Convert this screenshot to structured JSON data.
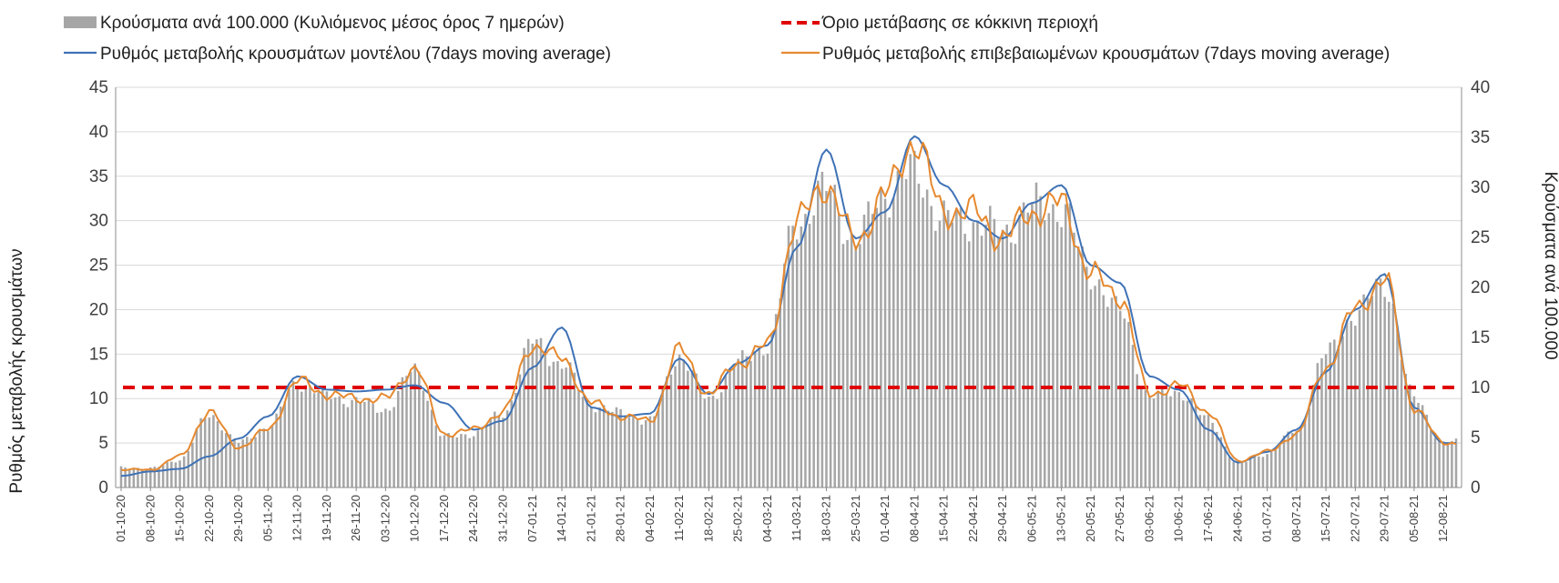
{
  "chart_data": {
    "type": "bar+line",
    "legend": [
      {
        "key": "bars",
        "label": "Κρούσματα ανά 100.000 (Κυλιόμενος μέσος όρος 7 ημερών)",
        "color": "#a6a6a6"
      },
      {
        "key": "threshold",
        "label": "Όριο μετάβασης σε κόκκινη περιοχή",
        "color": "#e00000"
      },
      {
        "key": "model",
        "label": "Ρυθμός μεταβολής κρουσμάτων μοντέλου (7days moving average)",
        "color": "#3f72b6"
      },
      {
        "key": "confirmed",
        "label": "Ρυθμός μεταβολής επιβεβαιωμένων κρουσμάτων (7days moving average)",
        "color": "#e6892f"
      }
    ],
    "left_axis": {
      "label": "Ρυθμός μεταβολής κρουσμάτων",
      "min": 0,
      "max": 45,
      "ticks": [
        "0",
        "5",
        "10",
        "15",
        "20",
        "25",
        "30",
        "35",
        "40",
        "45"
      ]
    },
    "right_axis": {
      "label": "Κρούσματα ανά 100.000",
      "min": 0,
      "max": 40,
      "ticks": [
        "0",
        "5",
        "10",
        "15",
        "20",
        "25",
        "30",
        "35",
        "40"
      ]
    },
    "x_labels": [
      "01-10-20",
      "08-10-20",
      "15-10-20",
      "22-10-20",
      "29-10-20",
      "05-11-20",
      "12-11-20",
      "19-11-20",
      "26-11-20",
      "03-12-20",
      "10-12-20",
      "17-12-20",
      "24-12-20",
      "31-12-20",
      "07-01-21",
      "14-01-21",
      "21-01-21",
      "28-01-21",
      "04-02-21",
      "11-02-21",
      "18-02-21",
      "25-02-21",
      "04-03-21",
      "11-03-21",
      "18-03-21",
      "25-03-21",
      "01-04-21",
      "08-04-21",
      "15-04-21",
      "22-04-21",
      "29-04-21",
      "06-05-21",
      "13-05-21",
      "20-05-21",
      "27-05-21",
      "03-06-21",
      "10-06-21",
      "17-06-21",
      "24-06-21",
      "01-07-21",
      "08-07-21",
      "15-07-21",
      "22-07-21",
      "29-07-21",
      "05-08-21",
      "12-08-21"
    ],
    "threshold_right_axis": 10,
    "bar_series_weekly": [
      2.0,
      1.9,
      2.8,
      7.3,
      4.5,
      6.0,
      10.5,
      9.2,
      8.6,
      7.8,
      11.8,
      5.0,
      5.4,
      7.4,
      14.5,
      12.4,
      8.3,
      7.4,
      6.7,
      13.2,
      8.8,
      12.5,
      14.3,
      26.6,
      29.7,
      24.7,
      29.5,
      31.5,
      26.8,
      26.6,
      25.5,
      28.1,
      28.0,
      21.3,
      17.5,
      9.1,
      9.6,
      6.8,
      2.4,
      3.4,
      5.7,
      13.3,
      17.4,
      20.4,
      8.9,
      4.5
    ],
    "model_series_weekly": [
      1.3,
      1.8,
      2.1,
      3.5,
      5.5,
      8.0,
      12.5,
      11.0,
      10.8,
      11.0,
      11.5,
      9.5,
      6.5,
      7.5,
      13.5,
      18.0,
      9.0,
      8.0,
      8.3,
      14.5,
      10.5,
      14.0,
      16.0,
      27.0,
      38.0,
      28.0,
      31.0,
      39.5,
      34.0,
      30.0,
      28.0,
      32.0,
      34.0,
      25.0,
      23.0,
      12.5,
      11.0,
      6.5,
      2.8,
      4.0,
      6.5,
      13.0,
      20.0,
      24.0,
      9.0,
      5.0
    ],
    "confirmed_series_weekly": [
      2.0,
      2.0,
      3.5,
      8.5,
      4.5,
      6.5,
      12.0,
      10.5,
      10.0,
      10.0,
      13.5,
      6.0,
      6.5,
      8.5,
      16.0,
      14.5,
      9.5,
      8.0,
      7.5,
      15.5,
      10.5,
      14.0,
      16.0,
      30.0,
      34.0,
      27.5,
      33.0,
      39.0,
      31.0,
      31.0,
      28.0,
      31.0,
      32.0,
      24.0,
      21.5,
      10.5,
      11.5,
      8.5,
      3.0,
      4.0,
      6.0,
      13.5,
      20.0,
      23.5,
      9.0,
      5.0
    ]
  }
}
